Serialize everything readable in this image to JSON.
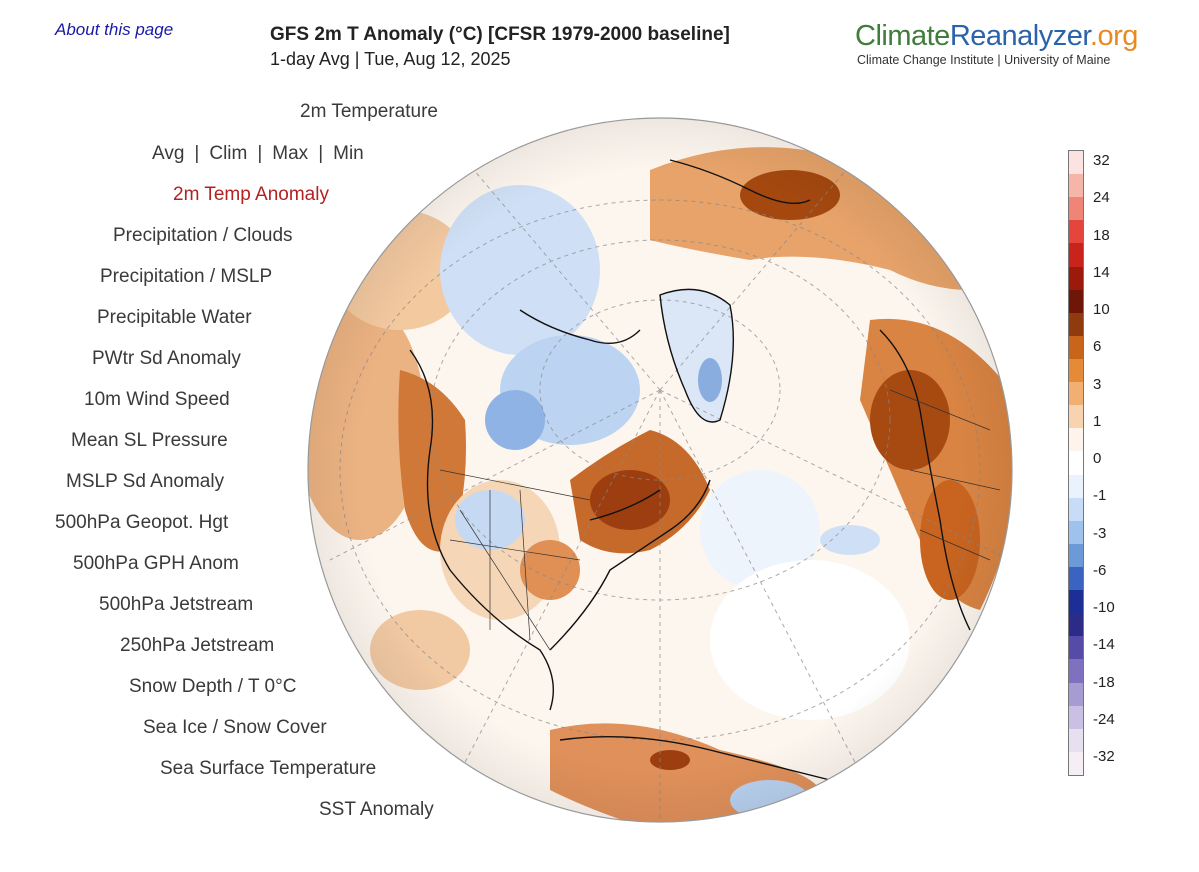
{
  "header": {
    "about_link": "About this page",
    "title": "GFS 2m T Anomaly (°C) [CFSR 1979-2000 baseline]",
    "subtitle": "1-day Avg | Tue, Aug 12, 2025"
  },
  "logo": {
    "part1": "Climate",
    "part2": "Reanalyzer",
    "part3": ".org",
    "tagline": "Climate Change Institute | University of Maine"
  },
  "menu": {
    "temperature": "2m Temperature",
    "avg_options": [
      "Avg",
      "Clim",
      "Max",
      "Min"
    ],
    "active": "2m Temp Anomaly",
    "items": [
      "Precipitation / Clouds",
      "Precipitation / MSLP",
      "Precipitable Water",
      "PWtr Sd Anomaly",
      "10m Wind Speed",
      "Mean SL Pressure",
      "MSLP Sd Anomaly",
      "500hPa Geopot. Hgt",
      "500hPa GPH Anom",
      "500hPa Jetstream",
      "250hPa Jetstream",
      "Snow Depth / T 0°C",
      "Sea Ice / Snow Cover",
      "Sea Surface Temperature",
      "SST Anomaly"
    ]
  },
  "colorbar": {
    "labels": [
      "32",
      "24",
      "18",
      "14",
      "10",
      "6",
      "3",
      "1",
      "0",
      "-1",
      "-3",
      "-6",
      "-10",
      "-14",
      "-18",
      "-24",
      "-32"
    ],
    "colors": [
      "#fbe3e1",
      "#f5b5a7",
      "#ee8577",
      "#e4463d",
      "#c8241c",
      "#9c1a0c",
      "#6e1608",
      "#8f3a0f",
      "#c8651b",
      "#e58a36",
      "#f1b071",
      "#f8d3b0",
      "#fff4ec",
      "#ffffff",
      "#eaf3fd",
      "#c7dcf6",
      "#9fc2ed",
      "#6c9ad9",
      "#3a64bf",
      "#1c2f96",
      "#2c2b88",
      "#574ba8",
      "#8071c0",
      "#a79bd4",
      "#c9c0e3",
      "#e6e0f1",
      "#f6eef5"
    ]
  }
}
